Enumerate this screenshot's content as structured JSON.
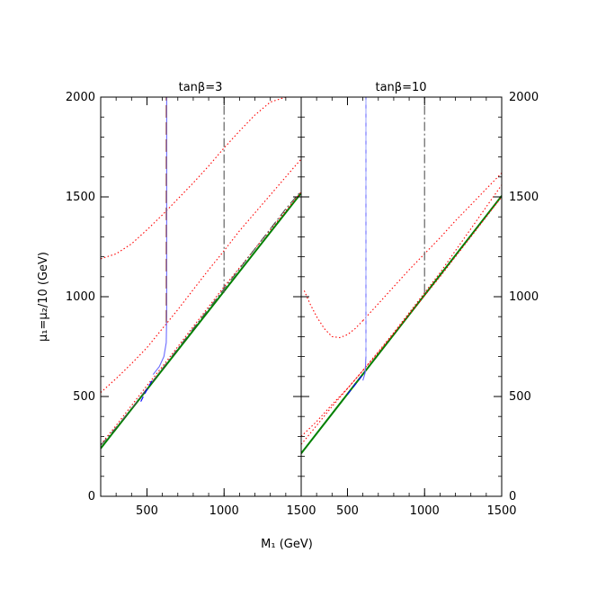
{
  "chart_data": [
    {
      "type": "line",
      "title": "tanβ=3",
      "xlabel": "M₁  (GeV)",
      "ylabel": "μ₁=μ₂/10  (GeV)",
      "xlim": [
        200,
        1500
      ],
      "ylim": [
        0,
        2000
      ],
      "x_ticks": [
        500,
        1000,
        1500
      ],
      "x_tick_labels": [
        "500",
        "1000",
        "1500"
      ],
      "y_ticks": [
        0,
        500,
        1000,
        1500,
        2000
      ],
      "y_tick_labels": [
        "0",
        "500",
        "1000",
        "1500",
        "2000"
      ],
      "y_axis_side": "left",
      "legend": "none",
      "series": [
        {
          "style": "solid",
          "color": "#008000",
          "x": [
            200,
            1500
          ],
          "y": [
            240,
            1520
          ]
        },
        {
          "style": "dotted",
          "color": "#ff0000",
          "x": [
            200,
            300,
            400,
            500,
            600,
            700,
            800,
            900,
            1000,
            1100,
            1200,
            1300,
            1400,
            1500
          ],
          "y": [
            1190,
            1215,
            1265,
            1335,
            1410,
            1490,
            1570,
            1655,
            1745,
            1830,
            1910,
            1975,
            2000,
            2000
          ]
        },
        {
          "style": "dotted",
          "color": "#ff0000",
          "x": [
            200,
            300,
            400,
            500,
            600,
            700,
            800,
            900,
            1000,
            1100,
            1200,
            1300,
            1400,
            1500
          ],
          "y": [
            520,
            590,
            665,
            745,
            840,
            935,
            1035,
            1135,
            1230,
            1330,
            1420,
            1510,
            1600,
            1690
          ]
        },
        {
          "style": "dotted",
          "color": "#ff0000",
          "x": [
            200,
            300,
            400,
            500,
            600,
            700,
            800,
            900,
            1000,
            1100,
            1200,
            1300,
            1400,
            1500
          ],
          "y": [
            260,
            355,
            455,
            555,
            650,
            750,
            850,
            950,
            1050,
            1145,
            1240,
            1335,
            1430,
            1525
          ]
        },
        {
          "style": "dash-dot",
          "color": "#555555",
          "x": [
            200,
            300,
            400,
            500,
            600,
            700,
            800,
            900,
            1000,
            1100,
            1200,
            1300,
            1400,
            1500
          ],
          "y": [
            255,
            345,
            440,
            540,
            640,
            740,
            840,
            940,
            1040,
            1140,
            1240,
            1340,
            1440,
            1530
          ]
        },
        {
          "style": "solid",
          "color": "#6a6aff",
          "x": [
            540,
            580,
            610,
            625,
            628,
            628
          ],
          "y": [
            610,
            650,
            700,
            770,
            900,
            2000
          ]
        },
        {
          "style": "dashed",
          "color": "#0000ff",
          "x": [
            460,
            500,
            540
          ],
          "y": [
            475,
            535,
            590
          ]
        },
        {
          "style": "long-dash",
          "color": "#8b4545",
          "x": [
            625,
            625
          ],
          "y": [
            870,
            2000
          ]
        },
        {
          "style": "dash-dot",
          "color": "#555555",
          "x": [
            1000,
            1000
          ],
          "y": [
            1020,
            2000
          ]
        }
      ]
    },
    {
      "type": "line",
      "title": "tanβ=10",
      "xlabel": "",
      "ylabel": "",
      "xlim": [
        200,
        1500
      ],
      "ylim": [
        0,
        2000
      ],
      "x_ticks": [
        500,
        1000,
        1500
      ],
      "x_tick_labels": [
        "500",
        "1000",
        "1500"
      ],
      "y_ticks": [
        0,
        500,
        1000,
        1500,
        2000
      ],
      "y_tick_labels": [
        "0",
        "500",
        "1000",
        "1500",
        "2000"
      ],
      "y_axis_side": "right",
      "legend": "none",
      "series": [
        {
          "style": "solid",
          "color": "#008000",
          "x": [
            200,
            1500
          ],
          "y": [
            215,
            1505
          ]
        },
        {
          "style": "dotted",
          "color": "#ff0000",
          "x": [
            220,
            260,
            300,
            350,
            400,
            450,
            500,
            550,
            600
          ],
          "y": [
            1030,
            960,
            900,
            840,
            800,
            795,
            810,
            840,
            880
          ]
        },
        {
          "style": "dotted",
          "color": "#ff0000",
          "x": [
            600,
            700,
            800,
            900,
            1000,
            1100,
            1200,
            1300,
            1400,
            1500
          ],
          "y": [
            880,
            965,
            1050,
            1135,
            1215,
            1295,
            1380,
            1460,
            1540,
            1620
          ]
        },
        {
          "style": "dotted",
          "color": "#ff0000",
          "x": [
            200,
            300,
            400,
            500,
            600,
            700,
            800,
            900,
            1000,
            1100,
            1200,
            1300,
            1400,
            1500
          ],
          "y": [
            300,
            375,
            460,
            540,
            630,
            720,
            815,
            910,
            1005,
            1100,
            1200,
            1300,
            1400,
            1500
          ]
        },
        {
          "style": "dotted",
          "color": "#ff0000",
          "x": [
            200,
            300,
            400,
            500,
            600,
            700,
            800,
            900,
            1000,
            1100,
            1200,
            1300,
            1400,
            1500
          ],
          "y": [
            260,
            355,
            450,
            540,
            630,
            725,
            820,
            920,
            1020,
            1120,
            1230,
            1340,
            1450,
            1560
          ]
        },
        {
          "style": "solid",
          "color": "#6a6aff",
          "x": [
            600,
            615,
            620,
            620
          ],
          "y": [
            580,
            620,
            700,
            2000
          ]
        },
        {
          "style": "dashed",
          "color": "#0000ff",
          "x": [
            500,
            540,
            580,
            610
          ],
          "y": [
            510,
            550,
            590,
            620
          ]
        },
        {
          "style": "dashed",
          "color": "#aab4ff",
          "x": [
            620,
            620
          ],
          "y": [
            700,
            2000
          ]
        },
        {
          "style": "dash-dot",
          "color": "#555555",
          "x": [
            1000,
            1000
          ],
          "y": [
            1020,
            2000
          ]
        }
      ]
    }
  ]
}
